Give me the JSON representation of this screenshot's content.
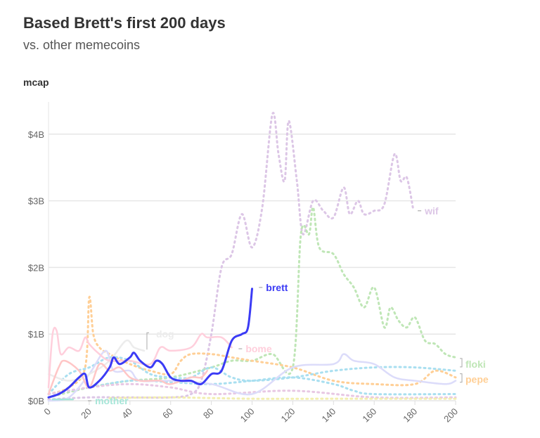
{
  "chart_data": {
    "type": "line",
    "title": "Based Brett's first 200 days",
    "subtitle": "vs. other memecoins",
    "ylabel": "mcap",
    "xlabel": "",
    "xlim": [
      0,
      200
    ],
    "ylim": [
      0,
      4.5
    ],
    "x_ticks": [
      "0",
      "20",
      "40",
      "60",
      "80",
      "100",
      "120",
      "140",
      "160",
      "180",
      "200"
    ],
    "y_ticks": [
      "$0B",
      "$1B",
      "$2B",
      "$3B",
      "$4B"
    ],
    "y_tick_values": [
      0,
      1,
      2,
      3,
      4
    ],
    "grid": "horizontal",
    "units": "billions USD",
    "series": [
      {
        "name": "wif",
        "color": "#dcc6e6",
        "style": "dotted",
        "label_day": 180,
        "label_value": 2.85,
        "x": [
          0,
          20,
          40,
          60,
          70,
          75,
          80,
          85,
          90,
          95,
          100,
          105,
          110,
          113,
          116,
          118,
          122,
          125,
          130,
          135,
          140,
          145,
          148,
          152,
          155,
          160,
          165,
          170,
          173,
          176,
          179
        ],
        "y": [
          0.02,
          0.05,
          0.05,
          0.05,
          0.1,
          0.3,
          1.0,
          2.0,
          2.2,
          2.8,
          2.3,
          2.9,
          4.3,
          3.7,
          3.3,
          4.2,
          3.3,
          2.5,
          3.0,
          2.85,
          2.75,
          3.2,
          2.8,
          3.0,
          2.8,
          2.85,
          2.95,
          3.7,
          3.3,
          3.35,
          2.9
        ]
      },
      {
        "name": "floki",
        "color": "#bfe6b6",
        "style": "dotted",
        "label_day": 200,
        "label_value": 0.55,
        "x": [
          0,
          20,
          40,
          60,
          80,
          90,
          100,
          110,
          120,
          124,
          128,
          130,
          133,
          140,
          145,
          150,
          155,
          160,
          165,
          168,
          172,
          176,
          180,
          185,
          190,
          195,
          200
        ],
        "y": [
          0.05,
          0.2,
          0.3,
          0.35,
          0.5,
          0.6,
          0.6,
          0.7,
          0.5,
          2.5,
          2.5,
          2.9,
          2.3,
          2.2,
          1.9,
          1.7,
          1.4,
          1.7,
          1.1,
          1.4,
          1.2,
          1.1,
          1.25,
          0.9,
          0.85,
          0.7,
          0.65
        ]
      },
      {
        "name": "pepe",
        "color": "#ffcf96",
        "style": "dotted",
        "label_day": 200,
        "label_value": 0.32,
        "x": [
          0,
          10,
          18,
          20,
          22,
          25,
          30,
          40,
          50,
          60,
          65,
          70,
          80,
          90,
          100,
          120,
          140,
          160,
          180,
          190,
          200
        ],
        "y": [
          0.1,
          0.2,
          0.5,
          1.55,
          1.0,
          0.8,
          0.7,
          0.55,
          0.45,
          0.4,
          0.6,
          0.7,
          0.7,
          0.65,
          0.6,
          0.5,
          0.3,
          0.25,
          0.25,
          0.45,
          0.35
        ]
      },
      {
        "color": "#a9dff0",
        "style": "dotted",
        "x": [
          0,
          10,
          20,
          30,
          40,
          50,
          60,
          70,
          80,
          90,
          100,
          120,
          140,
          160,
          180,
          200
        ],
        "y": [
          0.1,
          0.4,
          0.5,
          0.65,
          0.6,
          0.4,
          0.35,
          0.35,
          0.5,
          0.35,
          0.3,
          0.35,
          0.45,
          0.5,
          0.5,
          0.45
        ]
      },
      {
        "color": "#a9dff0",
        "style": "dotted",
        "x": [
          0,
          20,
          40,
          60,
          80,
          100,
          120,
          140,
          150,
          160,
          200
        ],
        "y": [
          0.1,
          0.2,
          0.3,
          0.28,
          0.25,
          0.3,
          0.35,
          0.25,
          0.15,
          0.1,
          0.1
        ]
      },
      {
        "color": "#e8c8e4",
        "style": "dotted",
        "x": [
          0,
          20,
          40,
          60,
          80,
          120,
          160,
          200
        ],
        "y": [
          0.1,
          0.2,
          0.25,
          0.2,
          0.1,
          0.15,
          0.05,
          0.05
        ]
      },
      {
        "color": "#f2eeb0",
        "style": "dotted",
        "x": [
          30,
          60,
          100,
          140,
          200
        ],
        "y": [
          0.04,
          0.05,
          0.03,
          0.03,
          0.03
        ]
      },
      {
        "color": "#dcdcfa",
        "style": "solid",
        "x": [
          0,
          10,
          20,
          28,
          32,
          40,
          45,
          60,
          80,
          100,
          120,
          140,
          145,
          150,
          160,
          170,
          180,
          195,
          200
        ],
        "y": [
          0.0,
          0.05,
          0.4,
          0.75,
          0.45,
          0.45,
          0.3,
          0.3,
          0.25,
          0.1,
          0.5,
          0.55,
          0.7,
          0.6,
          0.55,
          0.35,
          0.3,
          0.25,
          0.3
        ]
      },
      {
        "name": "dog",
        "color": "#ececec",
        "style": "solid",
        "label_day": 48,
        "label_value": 1.0,
        "x": [
          0,
          10,
          20,
          30,
          38,
          42,
          47
        ],
        "y": [
          0.4,
          0.3,
          0.4,
          0.6,
          0.9,
          0.8,
          0.75
        ]
      },
      {
        "color": "#ffc6c6",
        "style": "solid",
        "x": [
          0,
          5,
          8,
          15,
          20,
          25,
          30,
          35,
          40,
          45,
          50,
          55,
          60,
          70,
          75,
          78
        ],
        "y": [
          0.1,
          0.5,
          0.6,
          0.45,
          0.2,
          0.55,
          0.45,
          0.5,
          0.35,
          0.3,
          0.3,
          0.3,
          0.25,
          0.35,
          0.35,
          0.45
        ]
      },
      {
        "name": "bome",
        "color": "#ffcfdc",
        "style": "solid",
        "label_day": 92,
        "label_value": 0.78,
        "x": [
          0,
          2,
          4,
          6,
          10,
          15,
          18,
          20,
          25,
          30,
          40,
          50,
          55,
          60,
          70,
          75,
          78,
          85,
          90
        ],
        "y": [
          0.2,
          1.0,
          1.05,
          0.7,
          0.8,
          0.75,
          0.95,
          0.85,
          0.7,
          0.6,
          0.6,
          0.55,
          0.8,
          0.75,
          0.8,
          1.0,
          0.95,
          0.95,
          0.8
        ]
      },
      {
        "name": "mother",
        "color": "#a6e6d8",
        "style": "solid",
        "label_day": 18,
        "label_value": 0.0,
        "x": [
          2,
          12
        ],
        "y": [
          0.02,
          0.02
        ]
      },
      {
        "name": "brett",
        "color": "#3b3bf5",
        "style": "solid",
        "label_day": 102,
        "label_value": 1.7,
        "x": [
          0,
          5,
          10,
          15,
          18,
          20,
          25,
          30,
          32,
          35,
          40,
          42,
          45,
          50,
          53,
          56,
          60,
          65,
          70,
          75,
          80,
          85,
          90,
          95,
          98,
          100
        ],
        "y": [
          0.05,
          0.1,
          0.2,
          0.35,
          0.4,
          0.2,
          0.3,
          0.5,
          0.65,
          0.55,
          0.65,
          0.72,
          0.6,
          0.5,
          0.6,
          0.55,
          0.35,
          0.3,
          0.3,
          0.25,
          0.4,
          0.45,
          0.9,
          1.0,
          1.1,
          1.68
        ]
      }
    ]
  }
}
